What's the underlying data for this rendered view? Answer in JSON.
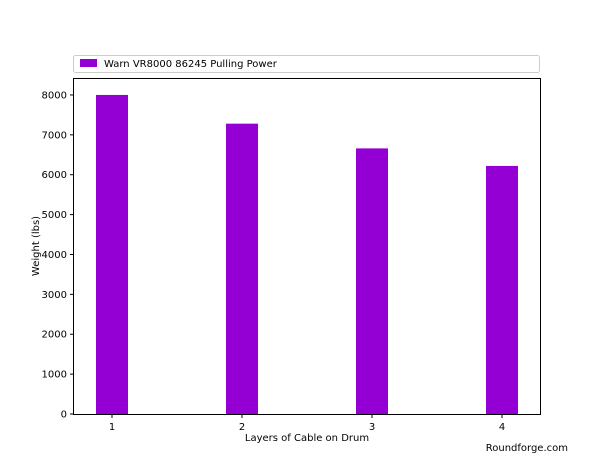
{
  "chart_data": {
    "type": "bar",
    "categories": [
      "1",
      "2",
      "3",
      "4"
    ],
    "series": [
      {
        "name": "Warn VR8000 86245 Pulling Power",
        "values": [
          8000,
          7280,
          6660,
          6220
        ]
      }
    ],
    "xlabel": "Layers of Cable on Drum",
    "ylabel": "Weight (lbs)",
    "ylim": [
      0,
      8400
    ],
    "yticks": [
      "0",
      "1000",
      "2000",
      "3000",
      "4000",
      "5000",
      "6000",
      "7000",
      "8000"
    ],
    "legend": "top",
    "grid": false,
    "bar_color": "#9400d3"
  },
  "watermark": "Roundforge.com"
}
